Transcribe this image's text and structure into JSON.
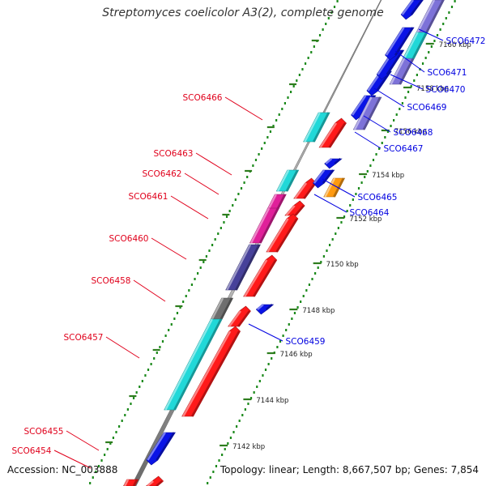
{
  "title": "Streptomyces coelicolor A3(2), complete genome",
  "footer": {
    "accession": "Accession: NC_003888",
    "info": "Topology: linear; Length: 8,667,507 bp; Genes: 7,854"
  },
  "colors": {
    "forward_label": "#e0001b",
    "reverse_label": "#0000e0",
    "tick": "#2e7d1e",
    "backbone": "#8a8a8a"
  },
  "ticks": [
    "7142 kbp",
    "7144 kbp",
    "7146 kbp",
    "7148 kbp",
    "7150 kbp",
    "7152 kbp",
    "7154 kbp",
    "7156 kbp",
    "7158 kbp",
    "7160 kbp"
  ],
  "forward_labels": [
    "SCO6466",
    "SCO6463",
    "SCO6462",
    "SCO6461",
    "SCO6460",
    "SCO6458",
    "SCO6457",
    "SCO6455",
    "SCO6454"
  ],
  "reverse_labels": [
    "SCO6472",
    "SCO6471",
    "SCO6470",
    "SCO6469",
    "SCO6468",
    "SCO6467",
    "SCO6465",
    "SCO6464",
    "SCO6459"
  ]
}
